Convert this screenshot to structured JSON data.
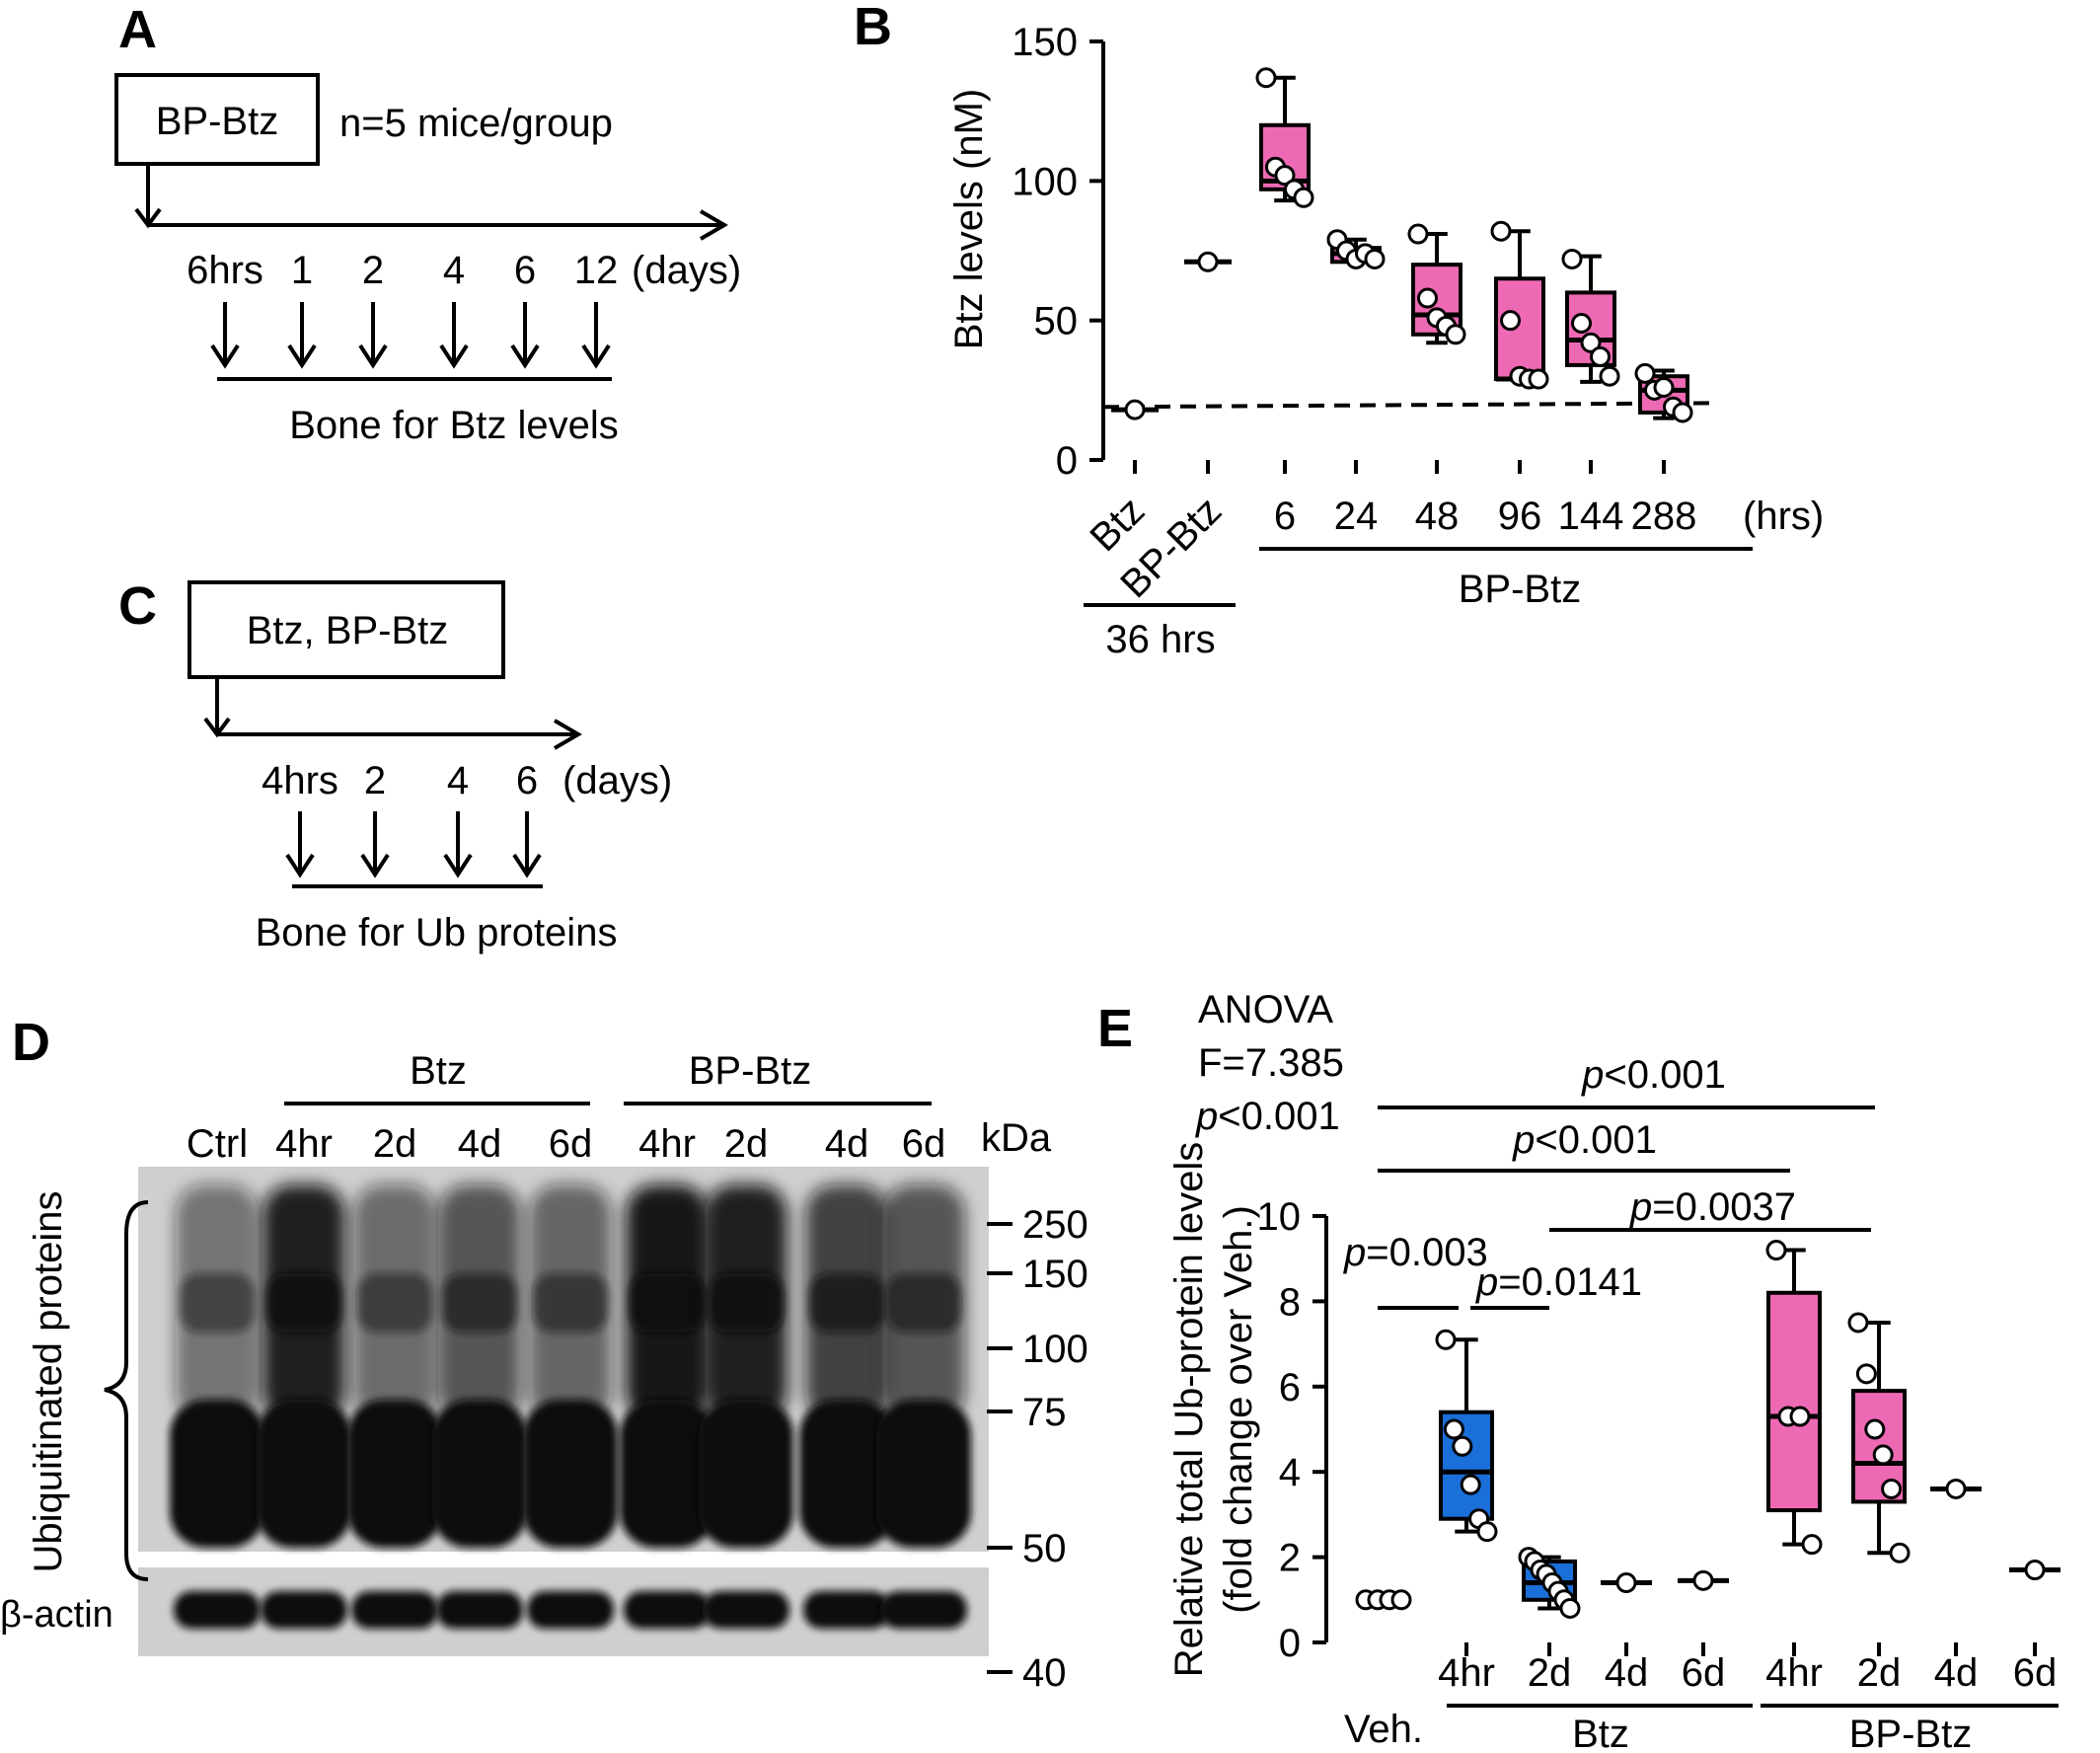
{
  "panel_labels": [
    "A",
    "B",
    "C",
    "D",
    "E"
  ],
  "panelA": {
    "box_label": "BP-Btz",
    "group_note": "n=5 mice/group",
    "timepoints": [
      "6hrs",
      "1",
      "2",
      "4",
      "6",
      "12"
    ],
    "unit": "(days)",
    "footer": "Bone for Btz levels"
  },
  "panelC": {
    "box_label": "Btz, BP-Btz",
    "timepoints": [
      "4hrs",
      "2",
      "4",
      "6"
    ],
    "unit": "(days)",
    "footer": "Bone for Ub proteins"
  },
  "panelD": {
    "group_btz": "Btz",
    "group_bpbtz": "BP-Btz",
    "lanes": [
      "Ctrl",
      "4hr",
      "2d",
      "4d",
      "6d",
      "4hr",
      "2d",
      "4d",
      "6d"
    ],
    "kda_label": "kDa",
    "markers": [
      "250",
      "150",
      "100",
      "75",
      "50",
      "40"
    ],
    "ub_label": "Ubiquitinated proteins",
    "actin_label": "β-actin",
    "colors": {
      "blot_bg": "#cfcfcf",
      "band": "#111111"
    }
  },
  "panelB": {
    "ylabel": "Btz levels (nM)",
    "yticks": [
      "0",
      "50",
      "100",
      "150"
    ],
    "rot_labels": [
      "Btz",
      "BP-Btz"
    ],
    "time_labels": [
      "6",
      "24",
      "48",
      "96",
      "144",
      "288"
    ],
    "time_unit": "(hrs)",
    "group_36": "36 hrs",
    "group_bp": "BP-Btz",
    "colors": {
      "box": "#ee69b3"
    }
  },
  "panelE": {
    "anova": [
      "ANOVA",
      "F=7.385",
      "<0.001"
    ],
    "ylabel_1": "Relative total Ub-protein levels",
    "ylabel_2": "(fold change over Veh.)",
    "yticks": [
      "0",
      "2",
      "4",
      "6",
      "8",
      "10"
    ],
    "xlabels": [
      "4hr",
      "2d",
      "4d",
      "6d",
      "4hr",
      "2d",
      "4d",
      "6d"
    ],
    "veh_label": "Veh.",
    "group_btz": "Btz",
    "group_bpbtz": "BP-Btz",
    "p_symbol": "p",
    "p_values": [
      "<0.001",
      "<0.001",
      "=0.0037",
      "=0.003",
      "=0.0141"
    ],
    "colors": {
      "btz": "#1a6fd8",
      "bpbtz": "#ee69b3"
    }
  },
  "chart_data": [
    {
      "type": "box",
      "ylabel": "Btz levels (nM)",
      "ylim": [
        0,
        150
      ],
      "categories": [
        "Btz",
        "BP-Btz",
        "6",
        "24",
        "48",
        "96",
        "144",
        "288"
      ],
      "boxes": [
        {
          "category": "Btz",
          "min": 18,
          "q1": 18,
          "median": 18,
          "q3": 18,
          "max": 18,
          "points": [
            18
          ]
        },
        {
          "category": "BP-Btz",
          "min": 71,
          "q1": 71,
          "median": 71,
          "q3": 71,
          "max": 71,
          "points": [
            71
          ]
        },
        {
          "category": "6",
          "min": 93,
          "q1": 97,
          "median": 100,
          "q3": 120,
          "max": 137,
          "points": [
            137,
            105,
            102,
            97,
            94
          ]
        },
        {
          "category": "24",
          "min": 71,
          "q1": 71,
          "median": 74,
          "q3": 76,
          "max": 79,
          "points": [
            79,
            75,
            72,
            74,
            72
          ]
        },
        {
          "category": "48",
          "min": 42,
          "q1": 45,
          "median": 52,
          "q3": 70,
          "max": 81,
          "points": [
            81,
            58,
            51,
            48,
            45
          ]
        },
        {
          "category": "96",
          "min": 29,
          "q1": 29,
          "median": 29,
          "q3": 65,
          "max": 82,
          "points": [
            82,
            50,
            30,
            29,
            29
          ]
        },
        {
          "category": "144",
          "min": 28,
          "q1": 34,
          "median": 43,
          "q3": 60,
          "max": 73,
          "points": [
            72,
            49,
            42,
            37,
            30
          ]
        },
        {
          "category": "288",
          "min": 15,
          "q1": 17,
          "median": 25,
          "q3": 30,
          "max": 32,
          "points": [
            31,
            25,
            26,
            19,
            17
          ]
        }
      ],
      "reference_line": 19
    },
    {
      "type": "box",
      "ylabel": "Relative total Ub-protein levels (fold change over Veh.)",
      "ylim": [
        0,
        10
      ],
      "categories": [
        "Veh.",
        "Btz 4hr",
        "Btz 2d",
        "Btz 4d",
        "Btz 6d",
        "BP-Btz 4hr",
        "BP-Btz 2d",
        "BP-Btz 4d",
        "BP-Btz 6d"
      ],
      "boxes": [
        {
          "category": "Veh.",
          "min": 1,
          "q1": 1,
          "median": 1,
          "q3": 1,
          "max": 1,
          "points": [
            1,
            1,
            1,
            1
          ]
        },
        {
          "category": "Btz 4hr",
          "min": 2.6,
          "q1": 2.9,
          "median": 4.0,
          "q3": 5.4,
          "max": 7.1,
          "points": [
            7.1,
            5.0,
            4.6,
            3.7,
            2.9,
            2.6
          ]
        },
        {
          "category": "Btz 2d",
          "min": 0.8,
          "q1": 1.0,
          "median": 1.4,
          "q3": 1.9,
          "max": 2.0,
          "points": [
            2.0,
            1.9,
            1.7,
            1.6,
            1.4,
            1.2,
            1.0,
            0.8
          ]
        },
        {
          "category": "Btz 4d",
          "min": 1.4,
          "q1": 1.4,
          "median": 1.4,
          "q3": 1.4,
          "max": 1.4,
          "points": [
            1.4
          ]
        },
        {
          "category": "Btz 6d",
          "min": 1.45,
          "q1": 1.45,
          "median": 1.45,
          "q3": 1.45,
          "max": 1.45,
          "points": [
            1.45
          ]
        },
        {
          "category": "BP-Btz 4hr",
          "min": 2.3,
          "q1": 3.1,
          "median": 5.3,
          "q3": 8.2,
          "max": 9.2,
          "points": [
            9.2,
            5.3,
            5.3,
            2.3
          ]
        },
        {
          "category": "BP-Btz 2d",
          "min": 2.1,
          "q1": 3.3,
          "median": 4.2,
          "q3": 5.9,
          "max": 7.5,
          "points": [
            7.5,
            6.3,
            5.0,
            4.4,
            3.6,
            2.1
          ]
        },
        {
          "category": "BP-Btz 4d",
          "min": 3.6,
          "q1": 3.6,
          "median": 3.6,
          "q3": 3.6,
          "max": 3.6,
          "points": [
            3.6
          ]
        },
        {
          "category": "BP-Btz 6d",
          "min": 1.7,
          "q1": 1.7,
          "median": 1.7,
          "q3": 1.7,
          "max": 1.7,
          "points": [
            1.7
          ]
        }
      ]
    }
  ]
}
